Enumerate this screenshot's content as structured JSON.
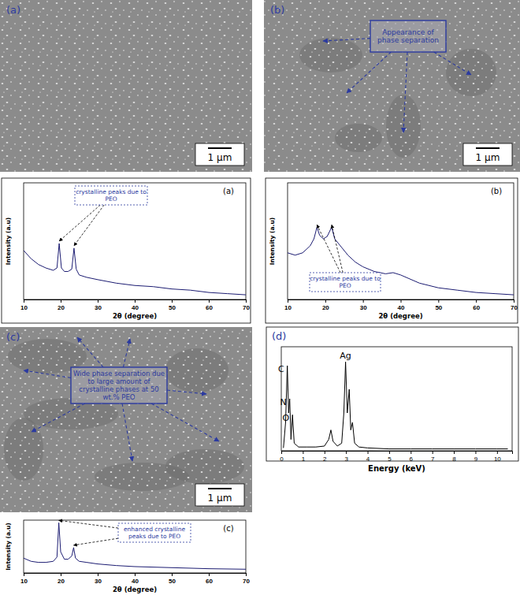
{
  "micrographs": [
    {
      "label": "(a)",
      "scale_bar": "1 μm"
    },
    {
      "label": "(b)",
      "scale_bar": "1 μm",
      "annotation": "Appearance of phase separation"
    },
    {
      "label": "(c)",
      "scale_bar": "1 μm",
      "annotation": "Wide phase separation due to large amount of crystalline phases at 50 wt.% PEO"
    }
  ],
  "chart_data": [
    {
      "type": "line",
      "title": "(a)",
      "x_label": "2θ (degree)",
      "y_label": "Intensity (a.u)",
      "x": [
        10,
        12,
        14,
        16,
        18,
        19,
        19.6,
        20.2,
        21,
        22,
        23,
        23.6,
        24.2,
        25,
        27,
        30,
        35,
        40,
        45,
        50,
        55,
        60,
        65,
        70
      ],
      "values": [
        42,
        35,
        30,
        27,
        25,
        27,
        48,
        27,
        24,
        24,
        26,
        44,
        26,
        21,
        19,
        17,
        14,
        12,
        11,
        9,
        8,
        6,
        5,
        4
      ],
      "color": "#1c1c72",
      "xlim": [
        10,
        70
      ],
      "ylim": [
        0,
        100
      ],
      "xticks": [
        10,
        20,
        30,
        40,
        50,
        60,
        70
      ],
      "tick_labels": "x",
      "annotations": [
        {
          "text": "crystalline peaks due to PEO",
          "x": [
            19.6,
            23.6
          ]
        }
      ]
    },
    {
      "type": "line",
      "title": "(b)",
      "x_label": "2θ (degree)",
      "y_label": "Intensity (a.u)",
      "x": [
        10,
        12,
        14,
        16,
        17,
        17.8,
        18.5,
        19.5,
        20.5,
        21.7,
        22.5,
        24,
        26,
        28,
        30,
        33,
        36,
        38,
        40,
        45,
        50,
        55,
        60,
        65,
        70
      ],
      "values": [
        40,
        38,
        40,
        46,
        52,
        62,
        55,
        52,
        54,
        62,
        52,
        46,
        38,
        32,
        28,
        24,
        22,
        23,
        21,
        14,
        10,
        8,
        6,
        5,
        4
      ],
      "color": "#1c1c72",
      "xlim": [
        10,
        70
      ],
      "ylim": [
        0,
        100
      ],
      "xticks": [
        10,
        20,
        30,
        40,
        50,
        60,
        70
      ],
      "tick_labels": "x",
      "annotations": [
        {
          "text": "crystalline peaks due to PEO",
          "x": [
            17.8,
            21.7
          ]
        }
      ]
    },
    {
      "type": "line",
      "title": "(c)",
      "x_label": "2θ (degree)",
      "y_label": "Intensity (a.u)",
      "x": [
        10,
        12,
        14,
        16,
        18,
        19,
        19.5,
        20,
        21,
        22,
        23,
        23.5,
        24,
        25,
        27,
        30,
        35,
        40,
        50,
        60,
        70
      ],
      "values": [
        28,
        22,
        20,
        20,
        22,
        30,
        95,
        40,
        26,
        26,
        32,
        48,
        28,
        22,
        20,
        17,
        14,
        12,
        10,
        8,
        7
      ],
      "color": "#1c1c72",
      "xlim": [
        10,
        70
      ],
      "ylim": [
        0,
        100
      ],
      "xticks": [
        10,
        20,
        30,
        40,
        50,
        60,
        70
      ],
      "tick_labels": "x",
      "annotations": [
        {
          "text": "enhanced crystalline peaks due to PEO",
          "x": [
            19.5,
            23.5
          ]
        }
      ]
    },
    {
      "type": "line",
      "title": "(d)",
      "x_label": "Energy (keV)",
      "x": [
        0.1,
        0.2,
        0.28,
        0.34,
        0.39,
        0.45,
        0.52,
        0.6,
        0.8,
        1.2,
        1.6,
        2.0,
        2.2,
        2.3,
        2.4,
        2.6,
        2.8,
        2.9,
        2.98,
        3.06,
        3.15,
        3.22,
        3.3,
        3.4,
        3.6,
        4,
        5,
        6,
        7,
        8,
        9,
        10,
        10.5
      ],
      "values": [
        3,
        30,
        90,
        40,
        55,
        12,
        38,
        8,
        4,
        4,
        4,
        5,
        12,
        22,
        10,
        5,
        8,
        40,
        94,
        40,
        65,
        22,
        30,
        8,
        4,
        3,
        2,
        2,
        2,
        2,
        2,
        2,
        2
      ],
      "color": "#000000",
      "xlim": [
        0,
        10.7
      ],
      "ylim": [
        0,
        110
      ],
      "xticks": [
        0,
        1,
        2,
        3,
        4,
        5,
        6,
        7,
        8,
        9,
        10
      ],
      "tick_labels": "x",
      "annotations": [
        {
          "text": "C",
          "x": 0.28
        },
        {
          "text": "N",
          "x": 0.39
        },
        {
          "text": "O",
          "x": 0.52
        },
        {
          "text": "Ag",
          "x": 2.98
        }
      ]
    }
  ]
}
